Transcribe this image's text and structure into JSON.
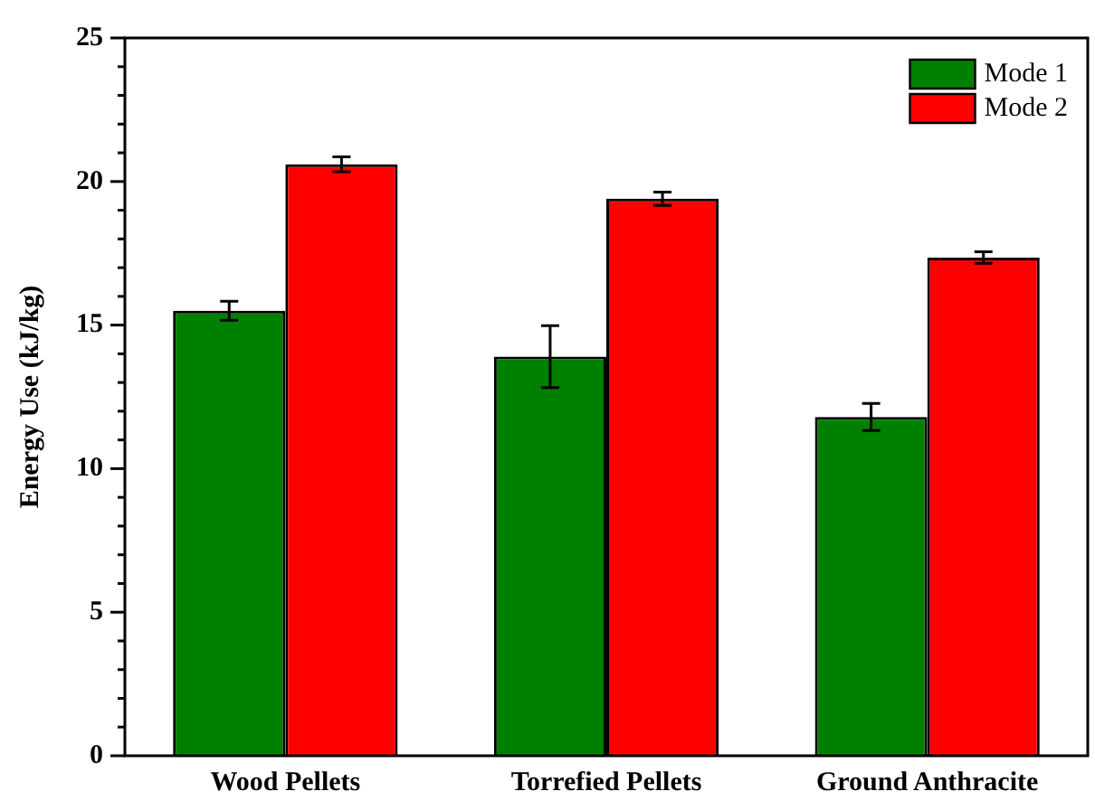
{
  "chart_data": {
    "type": "bar",
    "ylabel": "Energy Use (kJ/kg)",
    "categories": [
      "Wood Pellets",
      "Torrefied Pellets",
      "Ground Anthracite"
    ],
    "series": [
      {
        "name": "Mode 1",
        "color": "#008000",
        "values": [
          15.5,
          13.9,
          11.8
        ],
        "errors": [
          0.33,
          1.08,
          0.47
        ]
      },
      {
        "name": "Mode 2",
        "color": "#ff0000",
        "values": [
          20.6,
          19.4,
          17.35
        ],
        "errors": [
          0.26,
          0.23,
          0.2
        ]
      }
    ],
    "ylim": [
      0,
      25
    ],
    "yticks": [
      0,
      {
        "value": 1,
        "label": null
      },
      {
        "value": 2,
        "label": null
      },
      {
        "value": 3,
        "label": null
      },
      {
        "value": 4,
        "label": null
      },
      5,
      {
        "value": 6,
        "label": null
      },
      {
        "value": 7,
        "label": null
      },
      {
        "value": 8,
        "label": null
      },
      {
        "value": 9,
        "label": null
      },
      10,
      {
        "value": 11,
        "label": null
      },
      {
        "value": 12,
        "label": null
      },
      {
        "value": 13,
        "label": null
      },
      {
        "value": 14,
        "label": null
      },
      15,
      {
        "value": 16,
        "label": null
      },
      {
        "value": 17,
        "label": null
      },
      {
        "value": 18,
        "label": null
      },
      {
        "value": 19,
        "label": null
      },
      20,
      {
        "value": 21,
        "label": null
      },
      {
        "value": 22,
        "label": null
      },
      {
        "value": 23,
        "label": null
      },
      {
        "value": 24,
        "label": null
      },
      25
    ],
    "grid": false,
    "legend": "top right"
  }
}
